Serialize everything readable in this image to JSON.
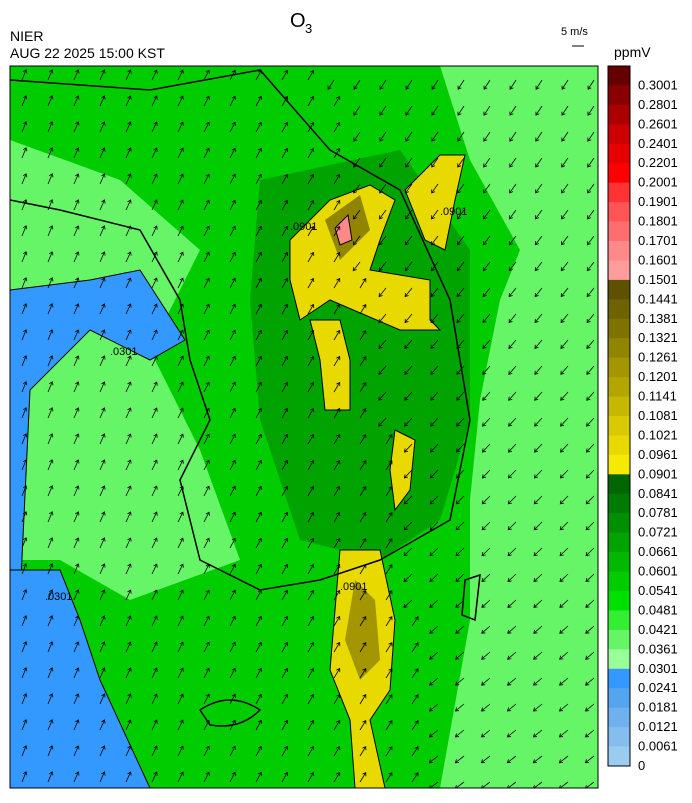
{
  "header": {
    "title": "O",
    "title_sub": "3",
    "agency": "NIER",
    "timestamp": "AUG 22 2025 15:00 KST",
    "wind_scale": "5 m/s",
    "unit": "ppmV"
  },
  "contour_labels": [
    ".0301",
    ".0301",
    ".0901",
    ".0901",
    ".0901"
  ],
  "colorbar": [
    {
      "label": "0.3001",
      "color": "#660000"
    },
    {
      "label": "0.2801",
      "color": "#880000"
    },
    {
      "label": "0.2601",
      "color": "#aa0000"
    },
    {
      "label": "0.2401",
      "color": "#cc0000"
    },
    {
      "label": "0.2201",
      "color": "#e60000"
    },
    {
      "label": "0.2001",
      "color": "#ff0000"
    },
    {
      "label": "0.1901",
      "color": "#ff3333"
    },
    {
      "label": "0.1801",
      "color": "#ff5555"
    },
    {
      "label": "0.1701",
      "color": "#ff6e6e"
    },
    {
      "label": "0.1601",
      "color": "#ff8888"
    },
    {
      "label": "0.1501",
      "color": "#ff9c9c"
    },
    {
      "label": "0.1441",
      "color": "#5e5200"
    },
    {
      "label": "0.1381",
      "color": "#6e6300"
    },
    {
      "label": "0.1321",
      "color": "#7f7300"
    },
    {
      "label": "0.1261",
      "color": "#918500"
    },
    {
      "label": "0.1201",
      "color": "#a39600"
    },
    {
      "label": "0.1141",
      "color": "#b4a600"
    },
    {
      "label": "0.1081",
      "color": "#c6b800"
    },
    {
      "label": "0.1021",
      "color": "#d8c900"
    },
    {
      "label": "0.0961",
      "color": "#e8da00"
    },
    {
      "label": "0.0901",
      "color": "#f5ea00"
    },
    {
      "label": "0.0841",
      "color": "#006600"
    },
    {
      "label": "0.0781",
      "color": "#007a00"
    },
    {
      "label": "0.0721",
      "color": "#008f00"
    },
    {
      "label": "0.0661",
      "color": "#00a300"
    },
    {
      "label": "0.0601",
      "color": "#00b800"
    },
    {
      "label": "0.0541",
      "color": "#00cc00"
    },
    {
      "label": "0.0481",
      "color": "#00e000"
    },
    {
      "label": "0.0421",
      "color": "#33ee33"
    },
    {
      "label": "0.0361",
      "color": "#66f566"
    },
    {
      "label": "0.0301",
      "color": "#99ff99"
    },
    {
      "label": "0.0241",
      "color": "#3399ff"
    },
    {
      "label": "0.0181",
      "color": "#55a5ee"
    },
    {
      "label": "0.0121",
      "color": "#6fb1ee"
    },
    {
      "label": "0.0061",
      "color": "#85bdee"
    },
    {
      "label": "0",
      "color": "#99ccee"
    }
  ]
}
